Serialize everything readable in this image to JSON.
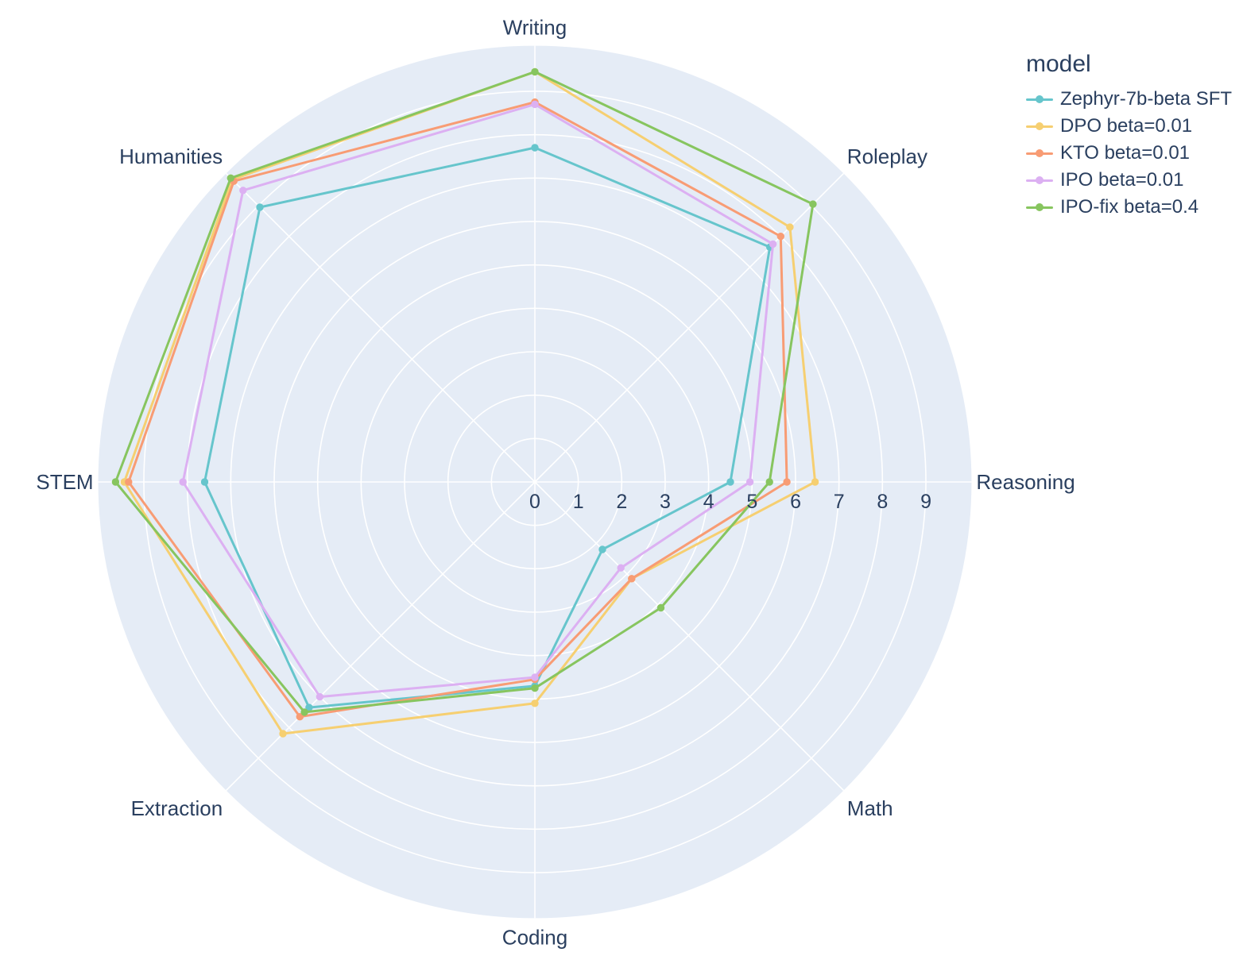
{
  "colors": {
    "page_bg": "#ffffff",
    "plot_bg": "#e5ecf6",
    "grid": "#ffffff",
    "text": "#2a3f5f"
  },
  "legend": {
    "title": "model"
  },
  "chart_data": {
    "type": "radar",
    "title": "",
    "legend_title": "model",
    "legend_position": "top-right",
    "grid": true,
    "direction": "clockwise",
    "start_angle_deg": 90,
    "categories": [
      "Writing",
      "Roleplay",
      "Reasoning",
      "Math",
      "Coding",
      "Extraction",
      "STEM",
      "Humanities"
    ],
    "radial_ticks": [
      0,
      1,
      2,
      3,
      4,
      5,
      6,
      7,
      8,
      9
    ],
    "radial_range": [
      0,
      10.05
    ],
    "series": [
      {
        "name": "Zephyr-7b-beta SFT",
        "color": "#66C5CC",
        "values": [
          7.7,
          7.65,
          4.5,
          2.2,
          4.7,
          7.35,
          7.6,
          8.95
        ]
      },
      {
        "name": "DPO beta=0.01",
        "color": "#F6CF71",
        "values": [
          9.45,
          8.3,
          6.45,
          3.15,
          5.1,
          8.2,
          9.45,
          9.85
        ]
      },
      {
        "name": "KTO beta=0.01",
        "color": "#F89C74",
        "values": [
          8.75,
          8.0,
          5.8,
          3.15,
          4.55,
          7.65,
          9.35,
          9.8
        ]
      },
      {
        "name": "IPO beta=0.01",
        "color": "#DCB0F2",
        "values": [
          8.7,
          7.75,
          4.95,
          2.8,
          4.5,
          7.0,
          8.1,
          9.5
        ]
      },
      {
        "name": "IPO-fix beta=0.4",
        "color": "#87C55F",
        "values": [
          9.45,
          9.05,
          5.4,
          4.1,
          4.75,
          7.5,
          9.65,
          9.9
        ]
      }
    ]
  }
}
